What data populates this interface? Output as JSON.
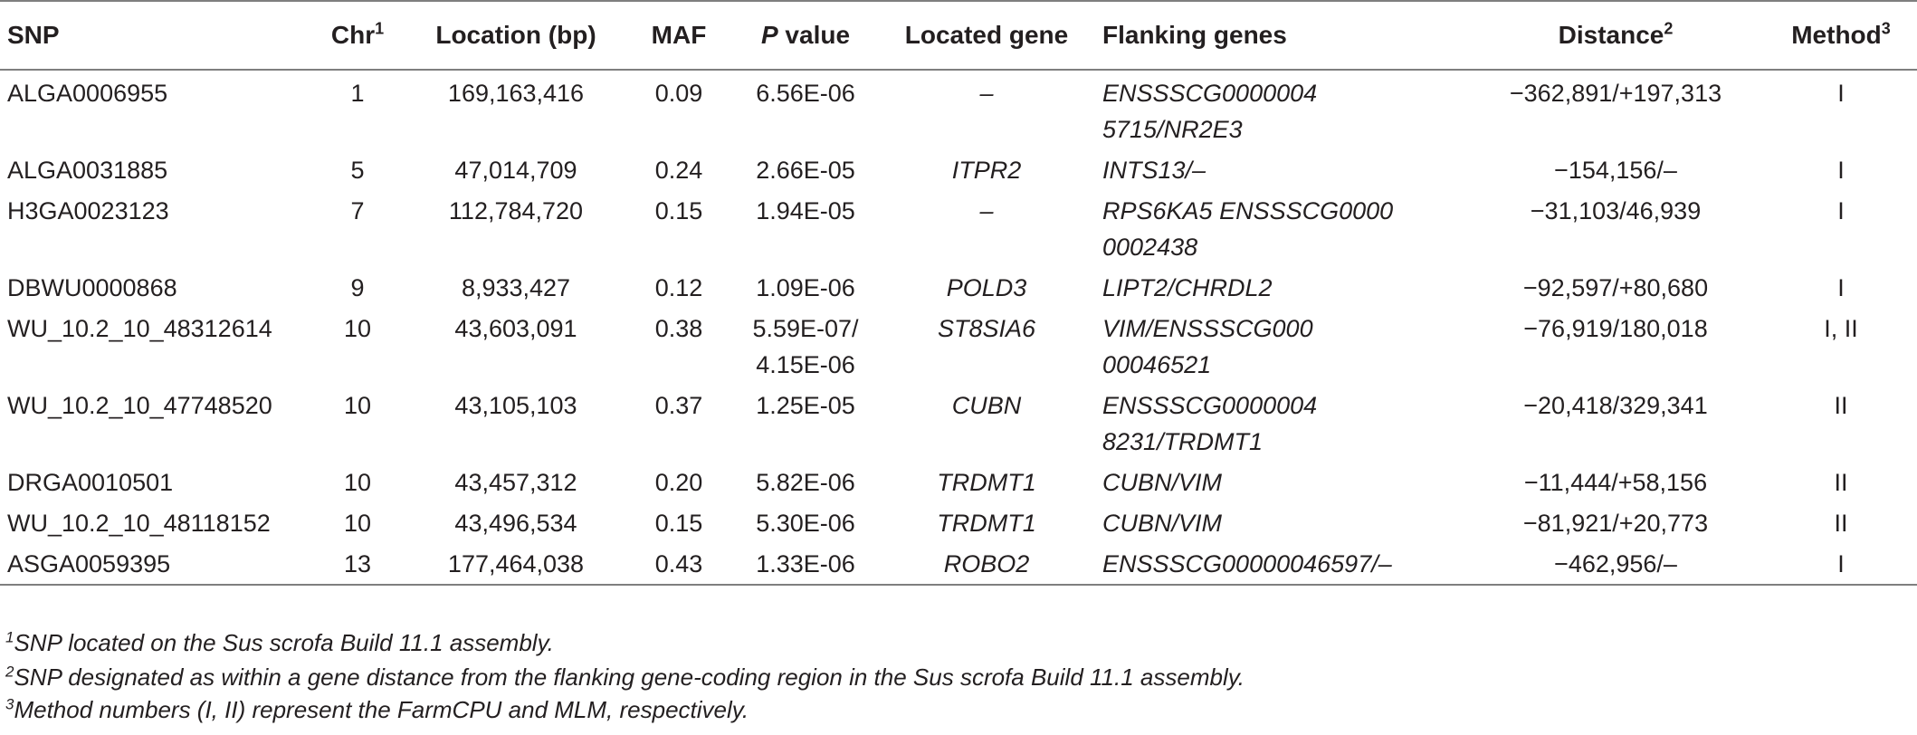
{
  "table": {
    "headers": {
      "snp": "SNP",
      "chr": "Chr",
      "chr_sup": "1",
      "location": "Location (bp)",
      "maf": "MAF",
      "p_italic": "P",
      "p_rest": " value",
      "located_gene": "Located gene",
      "flanking": "Flanking genes",
      "distance": "Distance",
      "distance_sup": "2",
      "method": "Method",
      "method_sup": "3"
    },
    "rows": [
      {
        "snp": "ALGA0006955",
        "chr": "1",
        "location": "169,163,416",
        "maf": "0.09",
        "p1": "6.56E-06",
        "p2": "",
        "gene": "–",
        "flank1": "ENSSSCG0000004",
        "flank2": "5715/NR2E3",
        "distance": "−362,891/+197,313",
        "method": "I"
      },
      {
        "snp": "ALGA0031885",
        "chr": "5",
        "location": "47,014,709",
        "maf": "0.24",
        "p1": "2.66E-05",
        "p2": "",
        "gene": "ITPR2",
        "flank1": "INTS13/–",
        "flank2": "",
        "distance": "−154,156/–",
        "method": "I"
      },
      {
        "snp": "H3GA0023123",
        "chr": "7",
        "location": "112,784,720",
        "maf": "0.15",
        "p1": "1.94E-05",
        "p2": "",
        "gene": "–",
        "flank1": "RPS6KA5 ENSSSCG0000",
        "flank2": "0002438",
        "distance": "−31,103/46,939",
        "method": "I"
      },
      {
        "snp": "DBWU0000868",
        "chr": "9",
        "location": "8,933,427",
        "maf": "0.12",
        "p1": "1.09E-06",
        "p2": "",
        "gene": "POLD3",
        "flank1": "LIPT2/CHRDL2",
        "flank2": "",
        "distance": "−92,597/+80,680",
        "method": "I"
      },
      {
        "snp": "WU_10.2_10_48312614",
        "chr": "10",
        "location": "43,603,091",
        "maf": "0.38",
        "p1": "5.59E-07/",
        "p2": "4.15E-06",
        "gene": "ST8SIA6",
        "flank1": "VIM/ENSSSCG000",
        "flank2": "00046521",
        "distance": "−76,919/180,018",
        "method": "I, II"
      },
      {
        "snp": "WU_10.2_10_47748520",
        "chr": "10",
        "location": "43,105,103",
        "maf": "0.37",
        "p1": "1.25E-05",
        "p2": "",
        "gene": "CUBN",
        "flank1": "ENSSSCG0000004",
        "flank2": "8231/TRDMT1",
        "distance": "−20,418/329,341",
        "method": "II"
      },
      {
        "snp": "DRGA0010501",
        "chr": "10",
        "location": "43,457,312",
        "maf": "0.20",
        "p1": "5.82E-06",
        "p2": "",
        "gene": "TRDMT1",
        "flank1": "CUBN/VIM",
        "flank2": "",
        "distance": "−11,444/+58,156",
        "method": "II"
      },
      {
        "snp": "WU_10.2_10_48118152",
        "chr": "10",
        "location": "43,496,534",
        "maf": "0.15",
        "p1": "5.30E-06",
        "p2": "",
        "gene": "TRDMT1",
        "flank1": "CUBN/VIM",
        "flank2": "",
        "distance": "−81,921/+20,773",
        "method": "II"
      },
      {
        "snp": "ASGA0059395",
        "chr": "13",
        "location": "177,464,038",
        "maf": "0.43",
        "p1": "1.33E-06",
        "p2": "",
        "gene": "ROBO2",
        "flank1": "ENSSSCG00000046597/–",
        "flank2": "",
        "distance": "−462,956/–",
        "method": "I"
      }
    ]
  },
  "footnotes": [
    {
      "sup": "1",
      "text": "SNP located on the Sus scrofa Build 11.1 assembly."
    },
    {
      "sup": "2",
      "text": "SNP designated as within a gene distance from the flanking gene-coding region in the Sus scrofa Build 11.1 assembly."
    },
    {
      "sup": "3",
      "text": "Method numbers (I, II) represent the FarmCPU and MLM, respectively."
    }
  ]
}
